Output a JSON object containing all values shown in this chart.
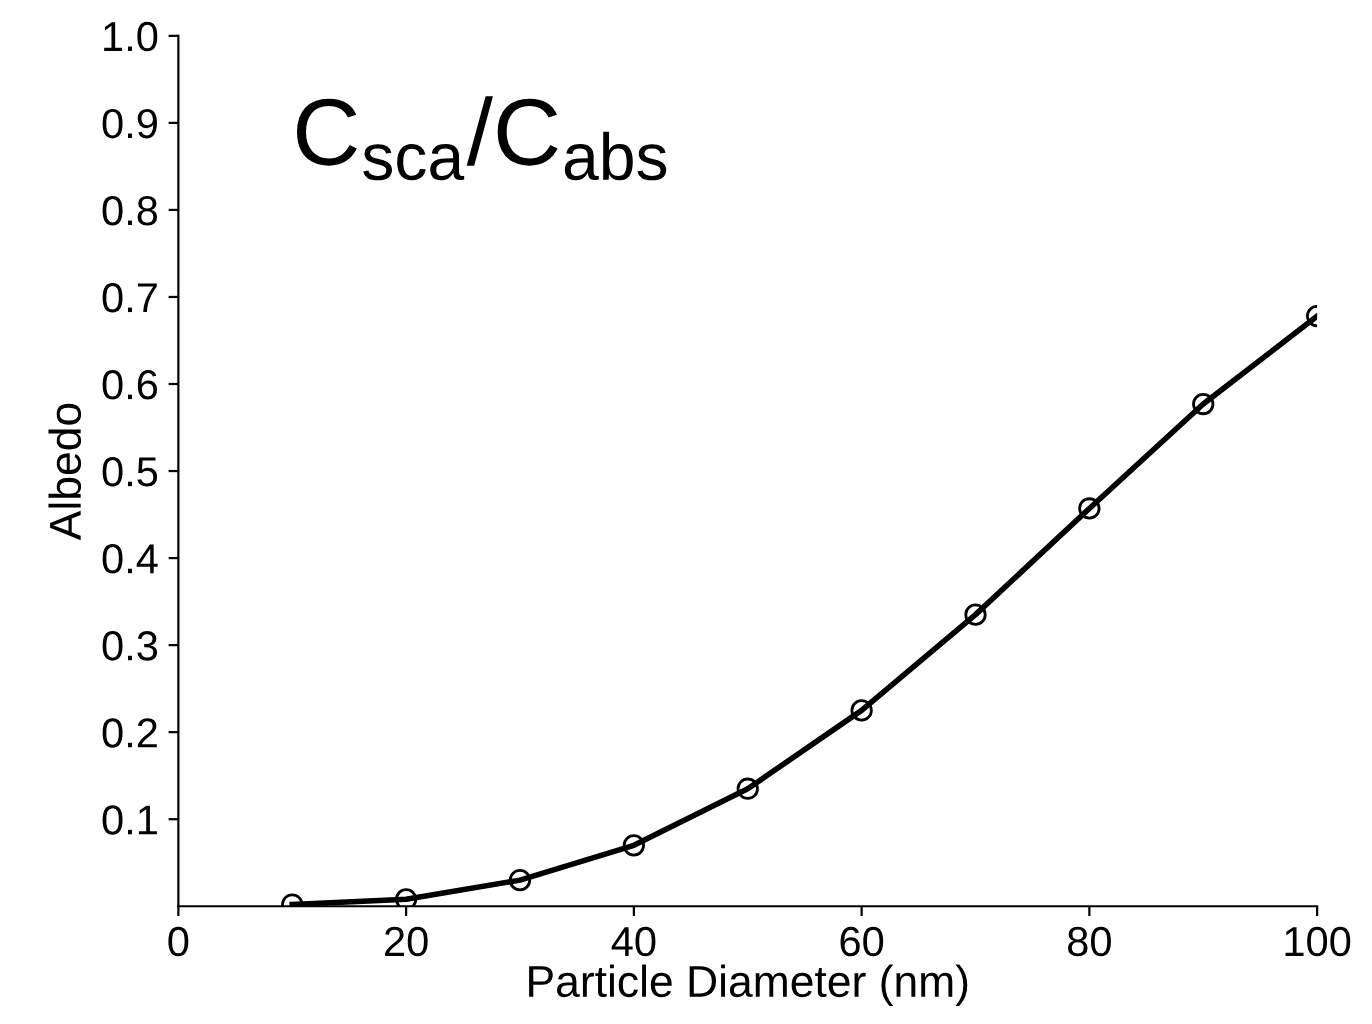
{
  "chart_data": {
    "type": "line",
    "xlabel": "Particle Diameter (nm)",
    "ylabel": "Albedo",
    "annotations": [
      "C$_{sca}$/C$_{abs}$"
    ],
    "x": [
      10,
      20,
      30,
      40,
      50,
      60,
      70,
      80,
      90,
      100
    ],
    "series": [
      {
        "color": "#000000",
        "values": [
          0.002,
          0.008,
          0.03,
          0.07,
          0.135,
          0.225,
          0.335,
          0.457,
          0.577,
          0.678
        ]
      }
    ],
    "xlim": [
      0,
      100
    ],
    "ylim": [
      0,
      1.0
    ],
    "xticks": [
      0,
      20,
      40,
      60,
      80,
      100
    ],
    "yticks": [
      0.1,
      0.2,
      0.3,
      0.4,
      0.5,
      0.6,
      0.7,
      0.8,
      0.9,
      {
        "value": 1.0,
        "label": "1.0"
      }
    ],
    "grid": false,
    "legend": false,
    "marker": "circle",
    "line_style": "solid"
  }
}
